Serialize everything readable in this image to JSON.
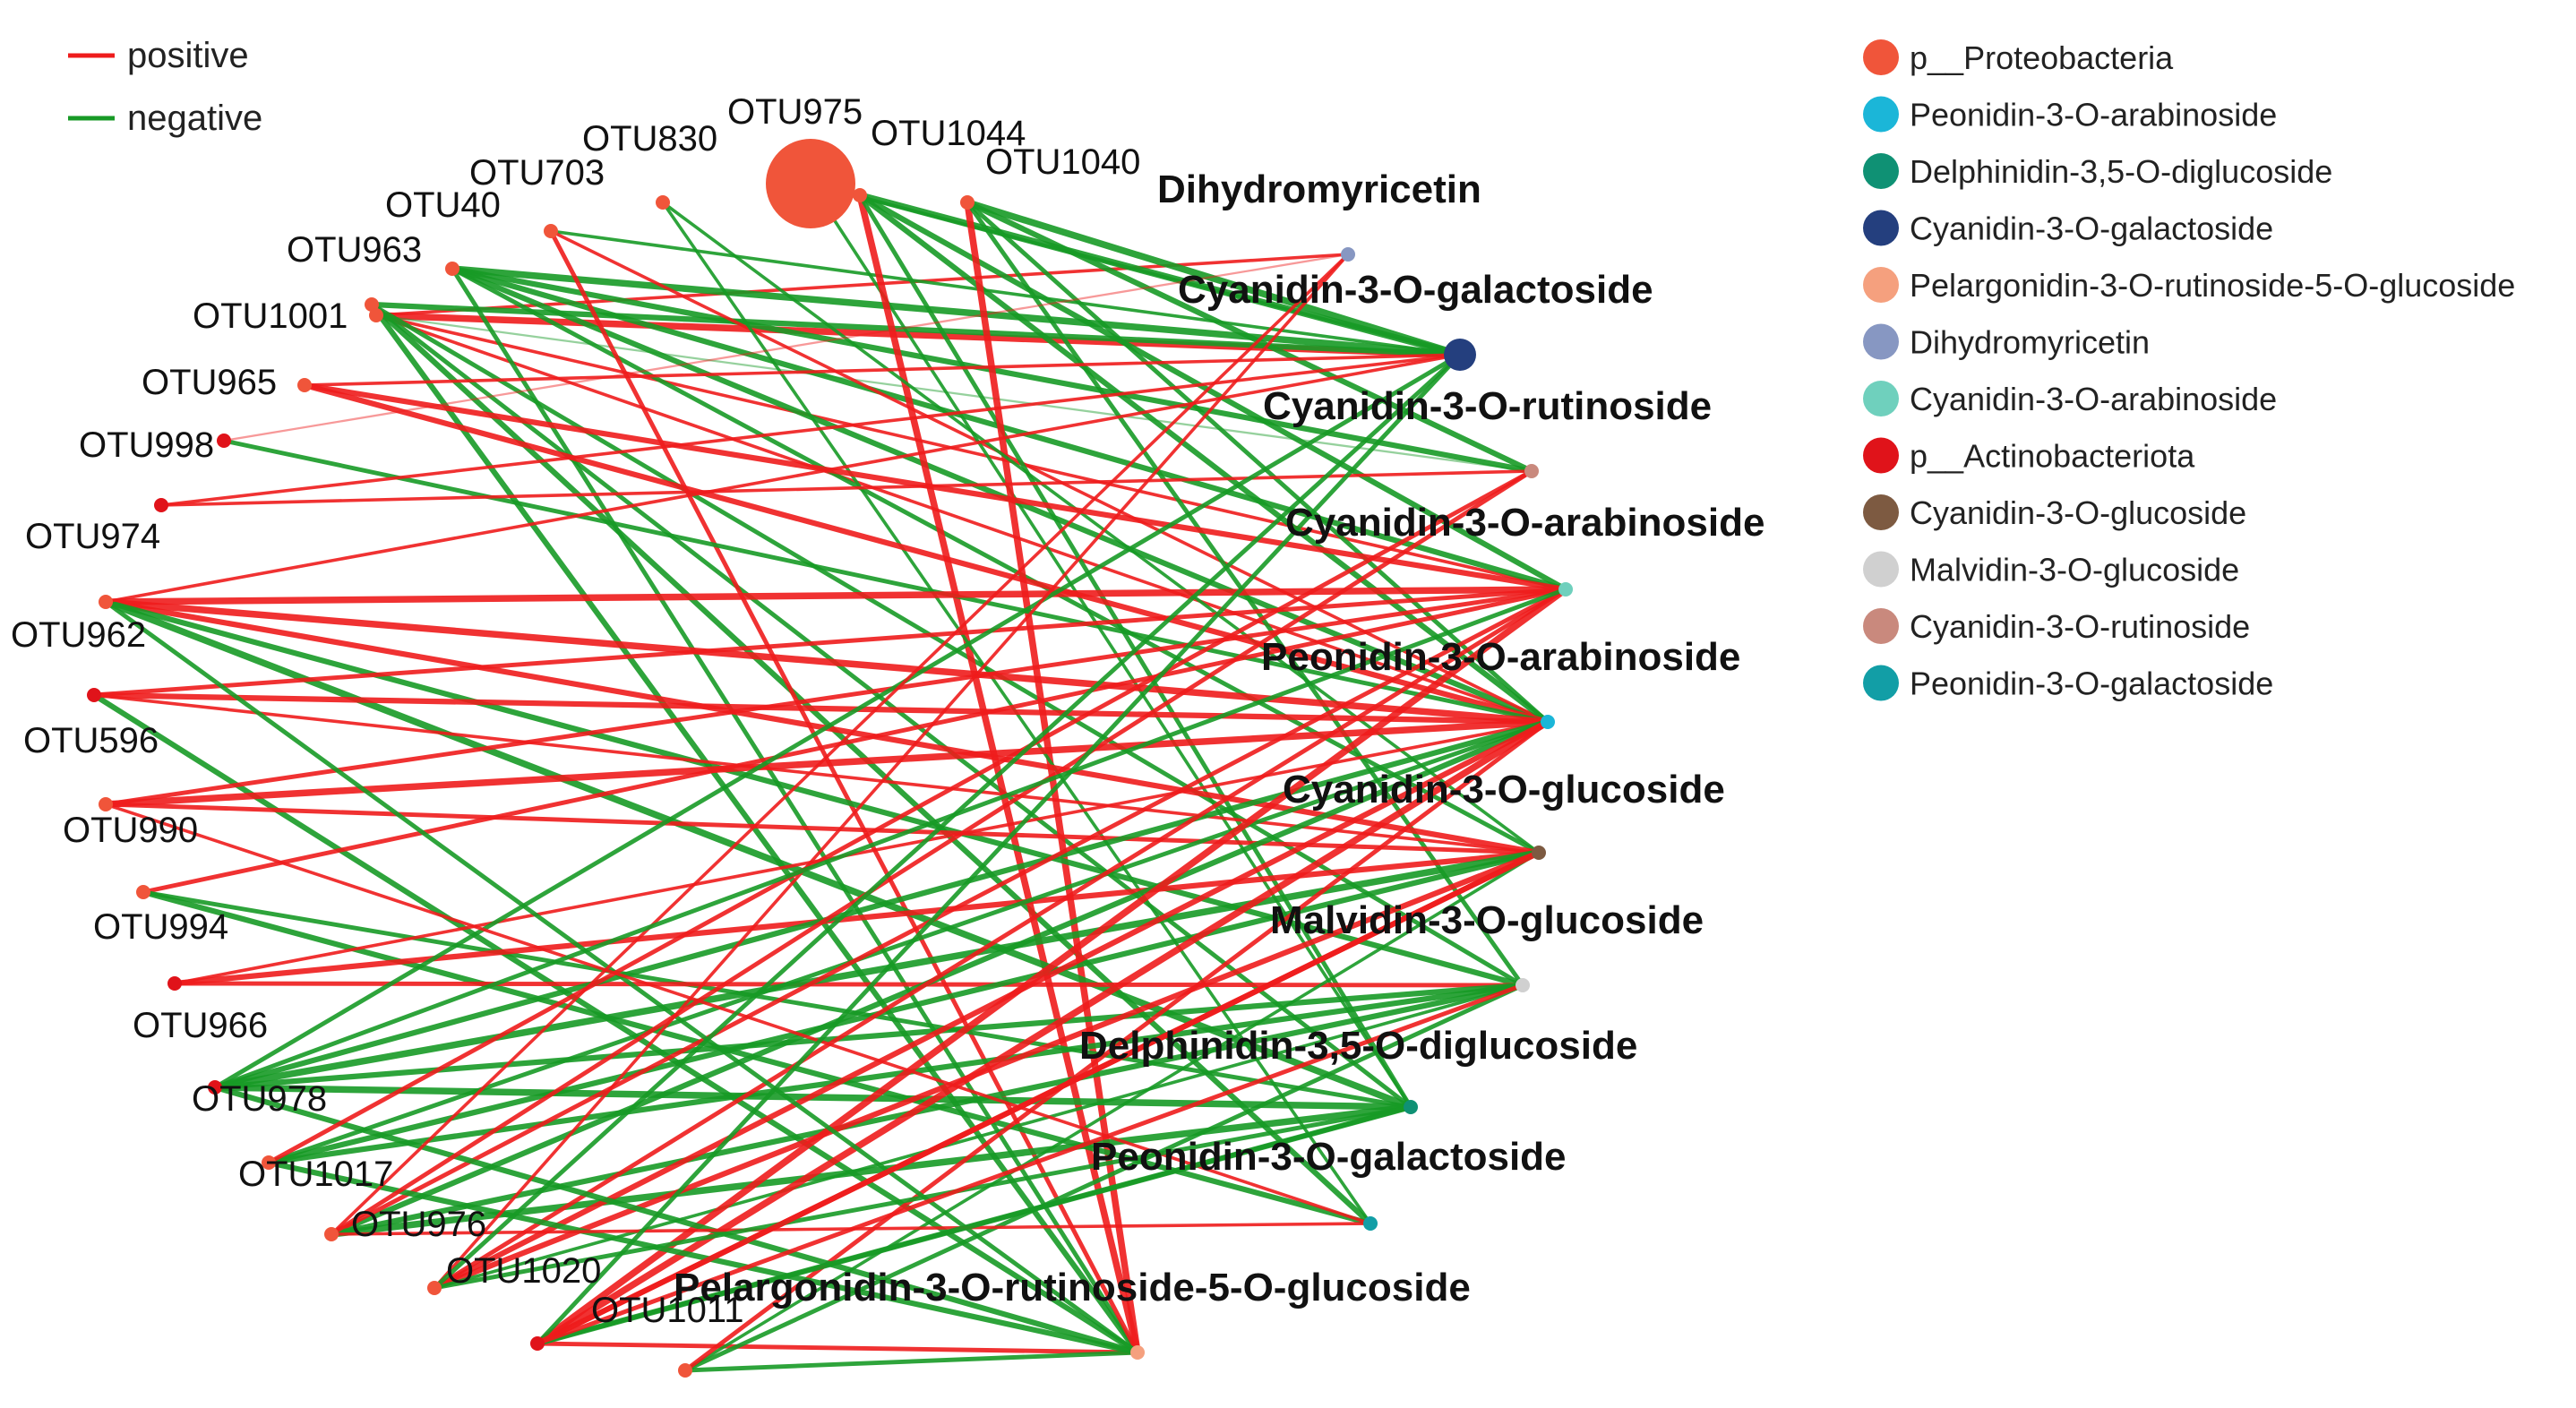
{
  "edge_types": [
    {
      "label": "positive",
      "color": "#ee1c1c"
    },
    {
      "label": "negative",
      "color": "#179a26"
    }
  ],
  "node_legend": [
    {
      "label": "p__Proteobacteria",
      "color": "#f0553a"
    },
    {
      "label": "Peonidin-3-O-arabinoside",
      "color": "#1bb6d8"
    },
    {
      "label": "Delphinidin-3,5-O-diglucoside",
      "color": "#0f9174"
    },
    {
      "label": "Cyanidin-3-O-galactoside",
      "color": "#243f7e"
    },
    {
      "label": "Pelargonidin-3-O-rutinoside-5-O-glucoside",
      "color": "#f5a07e"
    },
    {
      "label": "Dihydromyricetin",
      "color": "#8797c2"
    },
    {
      "label": "Cyanidin-3-O-arabinoside",
      "color": "#6fd0bd"
    },
    {
      "label": "p__Actinobacteriota",
      "color": "#e0131a"
    },
    {
      "label": "Cyanidin-3-O-glucoside",
      "color": "#7d5a41"
    },
    {
      "label": "Malvidin-3-O-glucoside",
      "color": "#d0d0d0"
    },
    {
      "label": "Cyanidin-3-O-rutinoside",
      "color": "#c9897d"
    },
    {
      "label": "Peonidin-3-O-galactoside",
      "color": "#129ea6"
    }
  ],
  "otu_nodes": [
    {
      "id": "OTU975",
      "label": "OTU975",
      "phylum": "p__Proteobacteria",
      "emphasis": "large"
    },
    {
      "id": "OTU830",
      "label": "OTU830",
      "phylum": "p__Proteobacteria"
    },
    {
      "id": "OTU1044",
      "label": "OTU1044",
      "phylum": "p__Proteobacteria"
    },
    {
      "id": "OTU1040",
      "label": "OTU1040",
      "phylum": "p__Proteobacteria"
    },
    {
      "id": "OTU703",
      "label": "OTU703",
      "phylum": "p__Proteobacteria"
    },
    {
      "id": "OTU40",
      "label": "OTU40",
      "phylum": "p__Proteobacteria"
    },
    {
      "id": "OTU963",
      "label": "OTU963",
      "phylum": "p__Proteobacteria"
    },
    {
      "id": "OTU1001",
      "label": "OTU1001",
      "phylum": "p__Proteobacteria"
    },
    {
      "id": "OTU965",
      "label": "OTU965",
      "phylum": "p__Proteobacteria"
    },
    {
      "id": "OTU998",
      "label": "OTU998",
      "phylum": "p__Actinobacteriota"
    },
    {
      "id": "OTU974",
      "label": "OTU974",
      "phylum": "p__Actinobacteriota"
    },
    {
      "id": "OTU962",
      "label": "OTU962",
      "phylum": "p__Proteobacteria"
    },
    {
      "id": "OTU596",
      "label": "OTU596",
      "phylum": "p__Actinobacteriota"
    },
    {
      "id": "OTU990",
      "label": "OTU990",
      "phylum": "p__Proteobacteria"
    },
    {
      "id": "OTU994",
      "label": "OTU994",
      "phylum": "p__Proteobacteria"
    },
    {
      "id": "OTU966",
      "label": "OTU966",
      "phylum": "p__Actinobacteriota"
    },
    {
      "id": "OTU978",
      "label": "OTU978",
      "phylum": "p__Actinobacteriota"
    },
    {
      "id": "OTU1017",
      "label": "OTU1017",
      "phylum": "p__Proteobacteria"
    },
    {
      "id": "OTU976",
      "label": "OTU976",
      "phylum": "p__Proteobacteria"
    },
    {
      "id": "OTU1020",
      "label": "OTU1020",
      "phylum": "p__Proteobacteria"
    },
    {
      "id": "OTU1011",
      "label": "OTU1011",
      "phylum": "p__Actinobacteriota"
    },
    {
      "id": "OTUx1",
      "label": "",
      "phylum": "p__Proteobacteria"
    }
  ],
  "metabolite_nodes": [
    {
      "id": "DHM",
      "label": "Dihydromyricetin",
      "class": "Dihydromyricetin"
    },
    {
      "id": "C3Gal",
      "label": "Cyanidin-3-O-galactoside",
      "class": "Cyanidin-3-O-galactoside",
      "emphasis": "large"
    },
    {
      "id": "C3Rut",
      "label": "Cyanidin-3-O-rutinoside",
      "class": "Cyanidin-3-O-rutinoside"
    },
    {
      "id": "C3Ara",
      "label": "Cyanidin-3-O-arabinoside",
      "class": "Cyanidin-3-O-arabinoside"
    },
    {
      "id": "P3Ara",
      "label": "Peonidin-3-O-arabinoside",
      "class": "Peonidin-3-O-arabinoside"
    },
    {
      "id": "C3Glc",
      "label": "Cyanidin-3-O-glucoside",
      "class": "Cyanidin-3-O-glucoside"
    },
    {
      "id": "M3Glc",
      "label": "Malvidin-3-O-glucoside",
      "class": "Malvidin-3-O-glucoside"
    },
    {
      "id": "D35",
      "label": "Delphinidin-3,5-O-diglucoside",
      "class": "Delphinidin-3,5-O-diglucoside"
    },
    {
      "id": "P3Gal",
      "label": "Peonidin-3-O-galactoside",
      "class": "Peonidin-3-O-galactoside"
    },
    {
      "id": "Pel",
      "label": "Pelargonidin-3-O-rutinoside-5-O-glucoside",
      "class": "Pelargonidin-3-O-rutinoside-5-O-glucoside"
    }
  ],
  "edges": [
    {
      "s": "OTU1001",
      "t": "C3Gal",
      "type": "positive",
      "w": 5
    },
    {
      "s": "OTU1001",
      "t": "DHM",
      "type": "positive",
      "w": 2
    },
    {
      "s": "OTU1001",
      "t": "P3Ara",
      "type": "positive",
      "w": 2
    },
    {
      "s": "OTU1001",
      "t": "C3Ara",
      "type": "positive",
      "w": 2
    },
    {
      "s": "OTU1001",
      "t": "C3Rut",
      "type": "negative",
      "w": 1
    },
    {
      "s": "OTU963",
      "t": "C3Gal",
      "type": "negative",
      "w": 4
    },
    {
      "s": "OTU963",
      "t": "P3Gal",
      "type": "negative",
      "w": 4
    },
    {
      "s": "OTU963",
      "t": "Pel",
      "type": "negative",
      "w": 4
    },
    {
      "s": "OTU963",
      "t": "M3Glc",
      "type": "negative",
      "w": 3
    },
    {
      "s": "OTU963",
      "t": "D35",
      "type": "negative",
      "w": 3
    },
    {
      "s": "OTU40",
      "t": "C3Gal",
      "type": "negative",
      "w": 5
    },
    {
      "s": "OTU40",
      "t": "C3Rut",
      "type": "negative",
      "w": 4
    },
    {
      "s": "OTU40",
      "t": "C3Ara",
      "type": "negative",
      "w": 4
    },
    {
      "s": "OTU40",
      "t": "P3Ara",
      "type": "negative",
      "w": 4
    },
    {
      "s": "OTU40",
      "t": "C3Glc",
      "type": "negative",
      "w": 3
    },
    {
      "s": "OTU40",
      "t": "Pel",
      "type": "negative",
      "w": 3
    },
    {
      "s": "OTU703",
      "t": "C3Gal",
      "type": "negative",
      "w": 2
    },
    {
      "s": "OTU703",
      "t": "P3Ara",
      "type": "positive",
      "w": 2
    },
    {
      "s": "OTU703",
      "t": "Pel",
      "type": "positive",
      "w": 3
    },
    {
      "s": "OTU975",
      "t": "C3Gal",
      "type": "negative",
      "w": 2
    },
    {
      "s": "OTU975",
      "t": "D35",
      "type": "negative",
      "w": 2
    },
    {
      "s": "OTU1044",
      "t": "C3Gal",
      "type": "negative",
      "w": 5
    },
    {
      "s": "OTU1044",
      "t": "Pel",
      "type": "positive",
      "w": 5
    },
    {
      "s": "OTU1044",
      "t": "C3Ara",
      "type": "negative",
      "w": 4
    },
    {
      "s": "OTU1044",
      "t": "P3Ara",
      "type": "negative",
      "w": 4
    },
    {
      "s": "OTU1044",
      "t": "D35",
      "type": "negative",
      "w": 3
    },
    {
      "s": "OTU1040",
      "t": "C3Gal",
      "type": "negative",
      "w": 5
    },
    {
      "s": "OTU1040",
      "t": "C3Rut",
      "type": "negative",
      "w": 4
    },
    {
      "s": "OTU1040",
      "t": "Pel",
      "type": "positive",
      "w": 5
    },
    {
      "s": "OTU1040",
      "t": "P3Ara",
      "type": "negative",
      "w": 3
    },
    {
      "s": "OTU1040",
      "t": "M3Glc",
      "type": "negative",
      "w": 3
    },
    {
      "s": "OTU830",
      "t": "P3Gal",
      "type": "negative",
      "w": 2
    },
    {
      "s": "OTU830",
      "t": "C3Glc",
      "type": "negative",
      "w": 2
    },
    {
      "s": "OTU965",
      "t": "C3Ara",
      "type": "positive",
      "w": 4
    },
    {
      "s": "OTU965",
      "t": "P3Ara",
      "type": "positive",
      "w": 4
    },
    {
      "s": "OTU965",
      "t": "C3Gal",
      "type": "positive",
      "w": 2
    },
    {
      "s": "OTU998",
      "t": "P3Ara",
      "type": "negative",
      "w": 3
    },
    {
      "s": "OTU998",
      "t": "DHM",
      "type": "positive",
      "w": 1
    },
    {
      "s": "OTU974",
      "t": "C3Rut",
      "type": "positive",
      "w": 2
    },
    {
      "s": "OTU974",
      "t": "C3Gal",
      "type": "positive",
      "w": 2
    },
    {
      "s": "OTU962",
      "t": "C3Ara",
      "type": "positive",
      "w": 5
    },
    {
      "s": "OTU962",
      "t": "P3Ara",
      "type": "positive",
      "w": 5
    },
    {
      "s": "OTU962",
      "t": "C3Glc",
      "type": "positive",
      "w": 4
    },
    {
      "s": "OTU962",
      "t": "D35",
      "type": "negative",
      "w": 5
    },
    {
      "s": "OTU962",
      "t": "M3Glc",
      "type": "negative",
      "w": 4
    },
    {
      "s": "OTU962",
      "t": "C3Gal",
      "type": "positive",
      "w": 2
    },
    {
      "s": "OTU596",
      "t": "P3Ara",
      "type": "positive",
      "w": 4
    },
    {
      "s": "OTU596",
      "t": "C3Ara",
      "type": "positive",
      "w": 3
    },
    {
      "s": "OTU596",
      "t": "Pel",
      "type": "negative",
      "w": 4
    },
    {
      "s": "OTU596",
      "t": "C3Glc",
      "type": "positive",
      "w": 2
    },
    {
      "s": "OTU990",
      "t": "P3Ara",
      "type": "positive",
      "w": 5
    },
    {
      "s": "OTU990",
      "t": "C3Glc",
      "type": "positive",
      "w": 3
    },
    {
      "s": "OTU990",
      "t": "C3Ara",
      "type": "positive",
      "w": 3
    },
    {
      "s": "OTU994",
      "t": "P3Gal",
      "type": "negative",
      "w": 4
    },
    {
      "s": "OTU994",
      "t": "C3Ara",
      "type": "positive",
      "w": 3
    },
    {
      "s": "OTU994",
      "t": "D35",
      "type": "negative",
      "w": 3
    },
    {
      "s": "OTU966",
      "t": "C3Glc",
      "type": "positive",
      "w": 4
    },
    {
      "s": "OTU966",
      "t": "M3Glc",
      "type": "positive",
      "w": 3
    },
    {
      "s": "OTU966",
      "t": "P3Ara",
      "type": "positive",
      "w": 2
    },
    {
      "s": "OTU978",
      "t": "D35",
      "type": "negative",
      "w": 5
    },
    {
      "s": "OTU978",
      "t": "C3Glc",
      "type": "negative",
      "w": 5
    },
    {
      "s": "OTU978",
      "t": "P3Ara",
      "type": "negative",
      "w": 4
    },
    {
      "s": "OTU978",
      "t": "M3Glc",
      "type": "negative",
      "w": 4
    },
    {
      "s": "OTU978",
      "t": "C3Gal",
      "type": "negative",
      "w": 3
    },
    {
      "s": "OTU1017",
      "t": "M3Glc",
      "type": "negative",
      "w": 4
    },
    {
      "s": "OTU1017",
      "t": "C3Glc",
      "type": "negative",
      "w": 4
    },
    {
      "s": "OTU1017",
      "t": "P3Ara",
      "type": "negative",
      "w": 3
    },
    {
      "s": "OTU976",
      "t": "D35",
      "type": "negative",
      "w": 5
    },
    {
      "s": "OTU976",
      "t": "P3Ara",
      "type": "negative",
      "w": 4
    },
    {
      "s": "OTU976",
      "t": "C3Ara",
      "type": "positive",
      "w": 3
    },
    {
      "s": "OTU976",
      "t": "M3Glc",
      "type": "negative",
      "w": 4
    },
    {
      "s": "OTU1020",
      "t": "P3Ara",
      "type": "positive",
      "w": 4
    },
    {
      "s": "OTU1020",
      "t": "C3Glc",
      "type": "positive",
      "w": 4
    },
    {
      "s": "OTU1020",
      "t": "C3Ara",
      "type": "positive",
      "w": 3
    },
    {
      "s": "OTU1020",
      "t": "M3Glc",
      "type": "negative",
      "w": 2
    },
    {
      "s": "OTU1011",
      "t": "P3Ara",
      "type": "positive",
      "w": 5
    },
    {
      "s": "OTU1011",
      "t": "C3Ara",
      "type": "positive",
      "w": 5
    },
    {
      "s": "OTU1011",
      "t": "C3Glc",
      "type": "positive",
      "w": 4
    },
    {
      "s": "OTU1011",
      "t": "Pel",
      "type": "positive",
      "w": 3
    },
    {
      "s": "OTU1011",
      "t": "D35",
      "type": "negative",
      "w": 3
    },
    {
      "s": "OTUx1",
      "t": "Pel",
      "type": "negative",
      "w": 3
    },
    {
      "s": "OTUx1",
      "t": "M3Glc",
      "type": "negative",
      "w": 3
    },
    {
      "s": "OTUx1",
      "t": "C3Glc",
      "type": "negative",
      "w": 2
    },
    {
      "s": "OTUx1",
      "t": "P3Ara",
      "type": "positive",
      "w": 3
    },
    {
      "s": "Pel",
      "t": "OTU962",
      "type": "negative",
      "w": 3
    },
    {
      "s": "Pel",
      "t": "OTU1017",
      "type": "negative",
      "w": 4
    },
    {
      "s": "Pel",
      "t": "OTU978",
      "type": "negative",
      "w": 4
    },
    {
      "s": "P3Gal",
      "t": "OTU976",
      "type": "positive",
      "w": 2
    },
    {
      "s": "P3Gal",
      "t": "OTU990",
      "type": "positive",
      "w": 2
    },
    {
      "s": "D35",
      "t": "OTU1020",
      "type": "negative",
      "w": 3
    },
    {
      "s": "D35",
      "t": "OTU1011",
      "type": "negative",
      "w": 4
    },
    {
      "s": "C3Rut",
      "t": "OTU1017",
      "type": "positive",
      "w": 3
    },
    {
      "s": "C3Rut",
      "t": "OTU976",
      "type": "positive",
      "w": 3
    },
    {
      "s": "DHM",
      "t": "OTU976",
      "type": "positive",
      "w": 2
    },
    {
      "s": "DHM",
      "t": "OTU1020",
      "type": "positive",
      "w": 2
    },
    {
      "s": "C3Gal",
      "t": "OTU1011",
      "type": "negative",
      "w": 3
    },
    {
      "s": "C3Gal",
      "t": "OTU1020",
      "type": "negative",
      "w": 3
    },
    {
      "s": "C3Glc",
      "t": "OTU1011",
      "type": "positive",
      "w": 4
    },
    {
      "s": "M3Glc",
      "t": "OTU1011",
      "type": "positive",
      "w": 3
    },
    {
      "s": "C3Ara",
      "t": "OTU978",
      "type": "negative",
      "w": 3
    }
  ]
}
